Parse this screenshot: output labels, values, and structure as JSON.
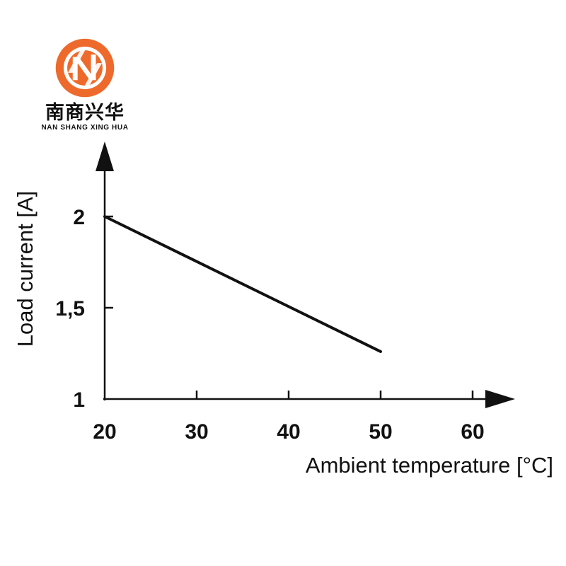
{
  "logo": {
    "name_cn": "南商兴华",
    "name_en": "NAN SHANG XING HUA",
    "ring_color": "#ee6a2c",
    "mark_color": "#ffffff"
  },
  "colors": {
    "line": "#111111",
    "axis": "#111111",
    "background": "#ffffff"
  },
  "chart_data": {
    "type": "line",
    "title": "",
    "xlabel": "Ambient temperature [°C]",
    "ylabel": "Load current [A]",
    "xlim": [
      20,
      60
    ],
    "ylim": [
      1,
      2
    ],
    "x_ticks": [
      20,
      30,
      40,
      50,
      60
    ],
    "x_tick_labels": [
      "20",
      "30",
      "40",
      "50",
      "60"
    ],
    "y_ticks": [
      1,
      1.5,
      2
    ],
    "y_tick_labels": [
      "1",
      "1,5",
      "2"
    ],
    "grid": false,
    "series": [
      {
        "x": [
          20,
          50
        ],
        "y": [
          2,
          1.26
        ]
      }
    ]
  }
}
